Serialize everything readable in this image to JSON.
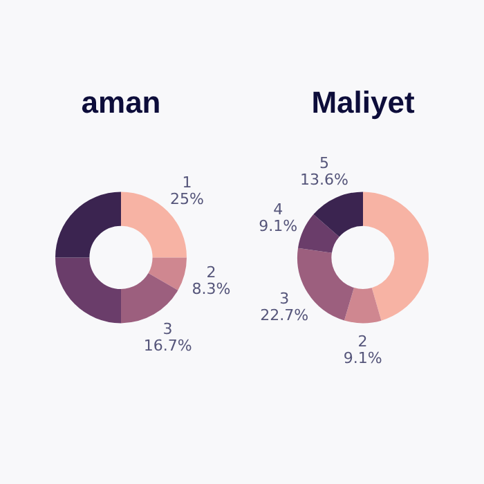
{
  "chart_data": [
    {
      "type": "donut",
      "title": "aman",
      "categories": [
        "1",
        "2",
        "3",
        null,
        null
      ],
      "values": [
        25,
        8.3,
        16.7,
        25,
        25
      ],
      "value_labels": [
        "25%",
        "8.3%",
        "16.7%",
        null,
        null
      ],
      "colors": [
        "#f7b3a4",
        "#cf8790",
        "#9c5f7e",
        "#6a3d6a",
        "#3b2450"
      ],
      "legend": false
    },
    {
      "type": "donut",
      "title": "Maliyet",
      "categories": [
        null,
        "2",
        "3",
        "4",
        "5"
      ],
      "values": [
        45.5,
        9.1,
        22.7,
        9.1,
        13.6
      ],
      "value_labels": [
        null,
        "9.1%",
        "22.7%",
        "9.1%",
        "13.6%"
      ],
      "colors": [
        "#f7b3a4",
        "#cf8790",
        "#9c5f7e",
        "#6a3d6a",
        "#3b2450"
      ],
      "legend": false
    }
  ]
}
